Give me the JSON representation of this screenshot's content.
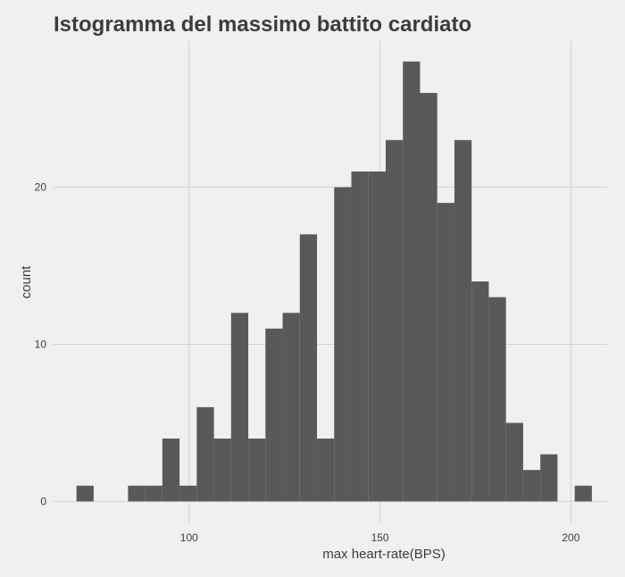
{
  "chart_data": {
    "type": "bar",
    "title": "Istogramma del massimo battito cardiato",
    "xlabel": "max heart-rate(BPS)",
    "ylabel": "count",
    "xlim": [
      64.5,
      209.5
    ],
    "ylim": [
      -1.4,
      29.3
    ],
    "x_ticks": [
      100,
      150,
      200
    ],
    "y_ticks": [
      0,
      10,
      20
    ],
    "grid": true,
    "bin_width": 4.5,
    "bins": [
      {
        "x0": 70.5,
        "count": 1
      },
      {
        "x0": 75.0,
        "count": 0
      },
      {
        "x0": 79.5,
        "count": 0
      },
      {
        "x0": 84.0,
        "count": 1
      },
      {
        "x0": 88.5,
        "count": 1
      },
      {
        "x0": 93.0,
        "count": 4
      },
      {
        "x0": 97.5,
        "count": 1
      },
      {
        "x0": 102.0,
        "count": 6
      },
      {
        "x0": 106.5,
        "count": 4
      },
      {
        "x0": 111.0,
        "count": 12
      },
      {
        "x0": 115.5,
        "count": 4
      },
      {
        "x0": 120.0,
        "count": 11
      },
      {
        "x0": 124.5,
        "count": 12
      },
      {
        "x0": 129.0,
        "count": 17
      },
      {
        "x0": 133.5,
        "count": 4
      },
      {
        "x0": 138.0,
        "count": 20
      },
      {
        "x0": 142.5,
        "count": 21
      },
      {
        "x0": 147.0,
        "count": 21
      },
      {
        "x0": 151.5,
        "count": 23
      },
      {
        "x0": 156.0,
        "count": 28
      },
      {
        "x0": 160.5,
        "count": 26
      },
      {
        "x0": 165.0,
        "count": 19
      },
      {
        "x0": 169.5,
        "count": 23
      },
      {
        "x0": 174.0,
        "count": 14
      },
      {
        "x0": 178.5,
        "count": 13
      },
      {
        "x0": 183.0,
        "count": 5
      },
      {
        "x0": 187.5,
        "count": 2
      },
      {
        "x0": 192.0,
        "count": 3
      },
      {
        "x0": 196.5,
        "count": 0
      },
      {
        "x0": 201.0,
        "count": 1
      }
    ]
  }
}
